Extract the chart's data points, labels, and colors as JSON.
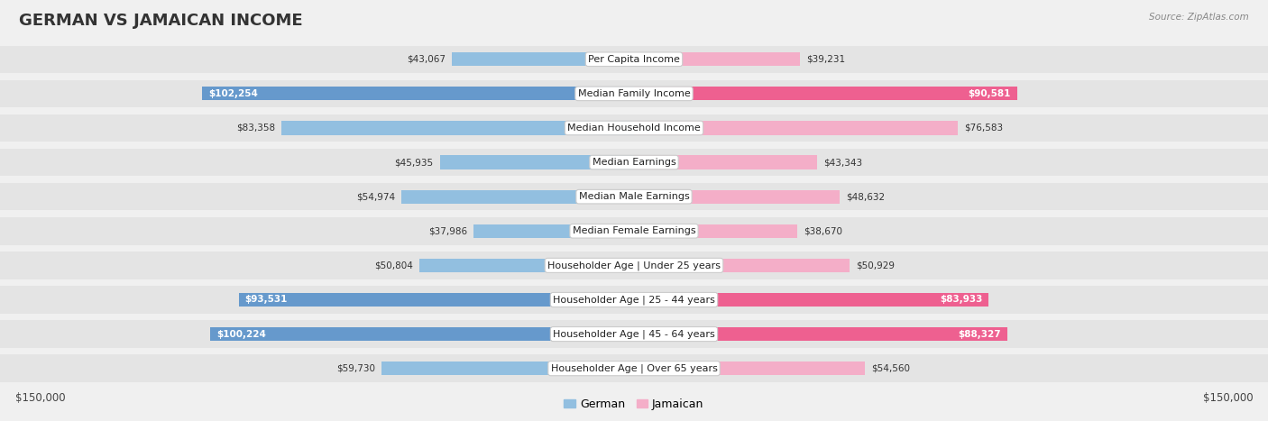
{
  "title": "GERMAN VS JAMAICAN INCOME",
  "source": "Source: ZipAtlas.com",
  "categories": [
    "Per Capita Income",
    "Median Family Income",
    "Median Household Income",
    "Median Earnings",
    "Median Male Earnings",
    "Median Female Earnings",
    "Householder Age | Under 25 years",
    "Householder Age | 25 - 44 years",
    "Householder Age | 45 - 64 years",
    "Householder Age | Over 65 years"
  ],
  "german_values": [
    43067,
    102254,
    83358,
    45935,
    54974,
    37986,
    50804,
    93531,
    100224,
    59730
  ],
  "jamaican_values": [
    39231,
    90581,
    76583,
    43343,
    48632,
    38670,
    50929,
    83933,
    88327,
    54560
  ],
  "max_value": 150000,
  "german_color_normal": "#92bfe0",
  "german_color_highlight": "#6699cc",
  "jamaican_color_normal": "#f4aec8",
  "jamaican_color_highlight": "#ee6090",
  "german_highlight_rows": [
    1,
    7,
    8
  ],
  "jamaican_highlight_rows": [
    1,
    7,
    8
  ],
  "background_color": "#f0f0f0",
  "row_bg_light": "#e8e8e8",
  "row_bg_dark": "#dedede",
  "title_fontsize": 13,
  "label_fontsize": 8.0,
  "value_fontsize": 7.5
}
